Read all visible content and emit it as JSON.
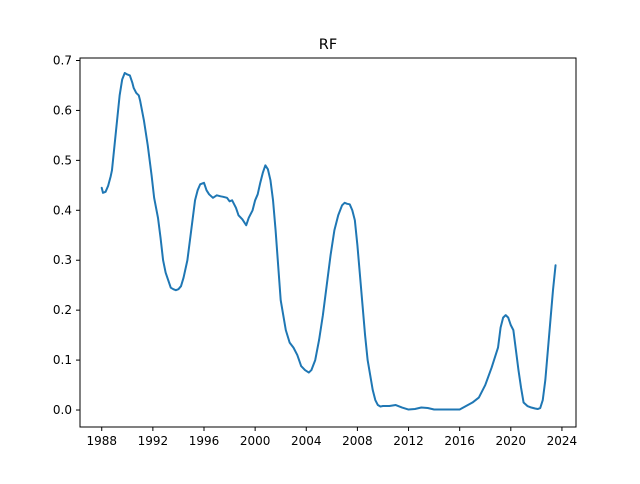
{
  "chart_data": {
    "type": "line",
    "title": "RF",
    "xlabel": "",
    "ylabel": "",
    "x_ticks": [
      "1988",
      "1992",
      "1996",
      "2000",
      "2004",
      "2008",
      "2012",
      "2016",
      "2020",
      "2024"
    ],
    "y_ticks": [
      "0.0",
      "0.1",
      "0.2",
      "0.3",
      "0.4",
      "0.5",
      "0.6",
      "0.7"
    ],
    "xlim": [
      1986.3,
      2025.1
    ],
    "ylim": [
      -0.034,
      0.705
    ],
    "grid": false,
    "legend": "none",
    "series": [
      {
        "color": "#1f77b4",
        "x": [
          1988.0,
          1988.1,
          1988.3,
          1988.5,
          1988.7,
          1988.8,
          1989.0,
          1989.2,
          1989.4,
          1989.6,
          1989.8,
          1990.0,
          1990.2,
          1990.4,
          1990.5,
          1990.7,
          1990.9,
          1991.0,
          1991.3,
          1991.6,
          1991.9,
          1992.1,
          1992.4,
          1992.6,
          1992.8,
          1993.0,
          1993.2,
          1993.4,
          1993.6,
          1993.8,
          1994.0,
          1994.2,
          1994.4,
          1994.7,
          1995.0,
          1995.3,
          1995.5,
          1995.7,
          1996.0,
          1996.2,
          1996.4,
          1996.7,
          1997.0,
          1997.3,
          1997.5,
          1997.8,
          1998.0,
          1998.2,
          1998.5,
          1998.7,
          1999.0,
          1999.3,
          1999.5,
          1999.8,
          2000.0,
          2000.2,
          2000.4,
          2000.6,
          2000.8,
          2001.0,
          2001.2,
          2001.4,
          2001.6,
          2001.8,
          2002.0,
          2002.2,
          2002.4,
          2002.7,
          2003.0,
          2003.3,
          2003.6,
          2003.9,
          2004.2,
          2004.4,
          2004.7,
          2005.0,
          2005.3,
          2005.6,
          2005.9,
          2006.2,
          2006.5,
          2006.8,
          2007.0,
          2007.2,
          2007.4,
          2007.6,
          2007.8,
          2008.0,
          2008.2,
          2008.4,
          2008.6,
          2008.8,
          2009.0,
          2009.2,
          2009.4,
          2009.6,
          2009.8,
          2010.0,
          2010.5,
          2011.0,
          2011.5,
          2012.0,
          2012.5,
          2013.0,
          2013.5,
          2014.0,
          2015.0,
          2016.0,
          2016.5,
          2017.0,
          2017.5,
          2018.0,
          2018.5,
          2019.0,
          2019.2,
          2019.4,
          2019.6,
          2019.8,
          2020.0,
          2020.2,
          2020.4,
          2020.6,
          2020.8,
          2021.0,
          2021.3,
          2021.6,
          2021.9,
          2022.1,
          2022.3,
          2022.5,
          2022.7,
          2022.9,
          2023.1,
          2023.3,
          2023.5
        ],
        "y": [
          0.445,
          0.435,
          0.437,
          0.449,
          0.468,
          0.48,
          0.53,
          0.58,
          0.63,
          0.662,
          0.675,
          0.672,
          0.67,
          0.655,
          0.645,
          0.635,
          0.63,
          0.62,
          0.58,
          0.53,
          0.47,
          0.425,
          0.385,
          0.345,
          0.3,
          0.275,
          0.26,
          0.245,
          0.242,
          0.24,
          0.242,
          0.248,
          0.265,
          0.3,
          0.36,
          0.42,
          0.44,
          0.452,
          0.455,
          0.44,
          0.432,
          0.425,
          0.43,
          0.428,
          0.427,
          0.425,
          0.418,
          0.42,
          0.405,
          0.39,
          0.382,
          0.37,
          0.385,
          0.4,
          0.42,
          0.432,
          0.455,
          0.475,
          0.49,
          0.482,
          0.46,
          0.42,
          0.36,
          0.29,
          0.22,
          0.19,
          0.16,
          0.135,
          0.125,
          0.11,
          0.088,
          0.08,
          0.075,
          0.08,
          0.1,
          0.14,
          0.19,
          0.25,
          0.31,
          0.36,
          0.39,
          0.41,
          0.415,
          0.413,
          0.412,
          0.4,
          0.38,
          0.33,
          0.27,
          0.21,
          0.15,
          0.1,
          0.07,
          0.04,
          0.02,
          0.01,
          0.007,
          0.008,
          0.008,
          0.01,
          0.005,
          0.001,
          0.002,
          0.005,
          0.004,
          0.001,
          0.001,
          0.001,
          0.008,
          0.015,
          0.025,
          0.05,
          0.085,
          0.125,
          0.165,
          0.185,
          0.19,
          0.185,
          0.17,
          0.16,
          0.12,
          0.08,
          0.045,
          0.015,
          0.008,
          0.005,
          0.003,
          0.002,
          0.004,
          0.02,
          0.06,
          0.12,
          0.18,
          0.24,
          0.29
        ]
      }
    ]
  }
}
